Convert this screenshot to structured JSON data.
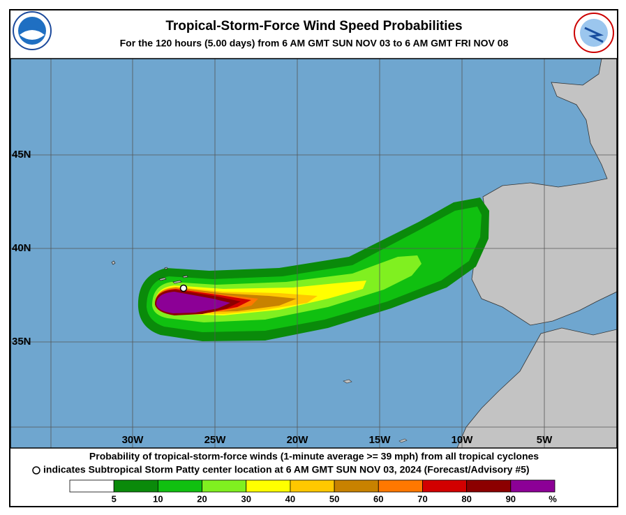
{
  "header": {
    "title": "Tropical-Storm-Force Wind Speed Probabilities",
    "subtitle": "For the 120 hours (5.00 days) from 6 AM GMT SUN NOV 03 to 6 AM GMT FRI NOV 08"
  },
  "map": {
    "lat_labels": [
      {
        "value": 45,
        "label": "45N"
      },
      {
        "value": 40,
        "label": "40N"
      },
      {
        "value": 35,
        "label": "35N"
      }
    ],
    "lon_labels": [
      {
        "value": -30,
        "label": "30W"
      },
      {
        "value": -25,
        "label": "25W"
      },
      {
        "value": -20,
        "label": "20W"
      },
      {
        "value": -15,
        "label": "15W"
      },
      {
        "value": -10,
        "label": "10W"
      },
      {
        "value": -5,
        "label": "5W"
      }
    ]
  },
  "footer": {
    "line1": "Probability of tropical-storm-force winds (1-minute average >= 39 mph) from all tropical cyclones",
    "line2": "indicates Subtropical Storm Patty center location at 6 AM GMT SUN NOV 03, 2024 (Forecast/Advisory #5)"
  },
  "legend": {
    "colors": [
      "#ffffff",
      "#0a8a0a",
      "#10c010",
      "#80f020",
      "#ffff00",
      "#ffc800",
      "#c88200",
      "#ff7800",
      "#d20000",
      "#8c0000",
      "#8c0096"
    ],
    "labels": [
      5,
      10,
      20,
      30,
      40,
      50,
      60,
      70,
      80,
      90
    ],
    "unit": "%"
  }
}
